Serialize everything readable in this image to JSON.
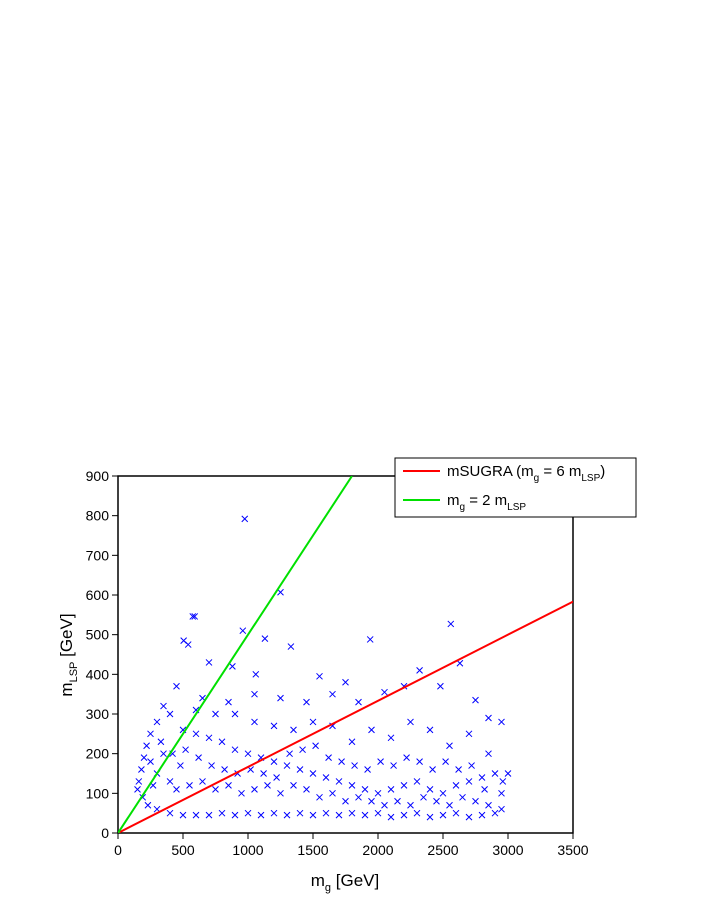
{
  "chart_data": {
    "type": "scatter",
    "xlabel": [
      "m",
      "g",
      " [GeV]"
    ],
    "ylabel": [
      "m",
      "LSP",
      " [GeV]"
    ],
    "xlim": [
      0,
      3500
    ],
    "xticks": [
      0,
      500,
      1000,
      1500,
      2000,
      2500,
      3000,
      3500
    ],
    "ylim": [
      0,
      900
    ],
    "yticks": [
      0,
      100,
      200,
      300,
      400,
      500,
      600,
      700,
      800,
      900
    ],
    "legend": "upper right",
    "series": [
      {
        "type": "scatter",
        "marker": "x",
        "color": "#0000ff",
        "x": [
          975,
          1250,
          575,
          590,
          960,
          2560,
          1940,
          2630,
          505,
          540,
          1130,
          1330,
          700,
          880,
          1060,
          1550,
          1750,
          2320,
          2480,
          2750,
          2850,
          2950,
          2200,
          2050,
          1850,
          1650,
          1450,
          1250,
          1050,
          850,
          650,
          450,
          350,
          300,
          250,
          220,
          200,
          180,
          160,
          150,
          190,
          230,
          300,
          400,
          500,
          600,
          700,
          800,
          900,
          1000,
          1100,
          1200,
          1300,
          1400,
          1500,
          1600,
          1700,
          1800,
          1900,
          2000,
          2100,
          2200,
          2300,
          2400,
          2500,
          2600,
          2700,
          2800,
          2900,
          2950,
          400,
          500,
          600,
          700,
          800,
          900,
          1000,
          1100,
          1200,
          1300,
          1400,
          1500,
          1600,
          1700,
          1800,
          1900,
          2000,
          2100,
          2200,
          2300,
          2400,
          2500,
          2600,
          2700,
          2800,
          2900,
          3000,
          2950,
          2850,
          2700,
          2550,
          2400,
          2250,
          2100,
          1950,
          1800,
          1650,
          1500,
          1350,
          1200,
          1050,
          900,
          750,
          600,
          350,
          300,
          270,
          400,
          450,
          550,
          650,
          750,
          850,
          950,
          1050,
          1150,
          1250,
          1350,
          1450,
          1550,
          1650,
          1750,
          1850,
          1950,
          2050,
          2150,
          2250,
          2350,
          2450,
          2550,
          2650,
          2750,
          2850,
          250,
          330,
          420,
          480,
          520,
          620,
          720,
          820,
          920,
          1020,
          1120,
          1220,
          1320,
          1420,
          1520,
          1620,
          1720,
          1820,
          1920,
          2020,
          2120,
          2220,
          2320,
          2420,
          2520,
          2620,
          2720,
          2820,
          2960
        ],
        "values": [
          792,
          607,
          546,
          546,
          510,
          527,
          488,
          428,
          485,
          475,
          490,
          470,
          430,
          420,
          400,
          395,
          380,
          410,
          370,
          335,
          290,
          280,
          370,
          355,
          330,
          350,
          330,
          340,
          350,
          330,
          340,
          370,
          320,
          280,
          250,
          220,
          190,
          160,
          130,
          110,
          90,
          70,
          60,
          50,
          45,
          45,
          45,
          50,
          45,
          50,
          45,
          50,
          45,
          50,
          45,
          50,
          45,
          50,
          45,
          50,
          40,
          45,
          50,
          40,
          45,
          50,
          40,
          45,
          50,
          60,
          300,
          260,
          250,
          240,
          230,
          210,
          200,
          190,
          180,
          170,
          160,
          150,
          140,
          130,
          120,
          110,
          100,
          110,
          120,
          130,
          110,
          100,
          120,
          130,
          140,
          150,
          150,
          100,
          200,
          250,
          220,
          260,
          280,
          240,
          260,
          230,
          270,
          280,
          260,
          270,
          280,
          300,
          300,
          310,
          200,
          150,
          120,
          130,
          110,
          120,
          130,
          110,
          120,
          100,
          110,
          120,
          100,
          120,
          110,
          90,
          100,
          80,
          90,
          80,
          70,
          80,
          70,
          90,
          80,
          70,
          90,
          80,
          70,
          180,
          230,
          200,
          170,
          210,
          190,
          170,
          160,
          150,
          160,
          150,
          140,
          200,
          210,
          220,
          190,
          180,
          170,
          160,
          180,
          170,
          190,
          180,
          160,
          180,
          160,
          170,
          110,
          130
        ]
      },
      {
        "type": "line",
        "name": [
          "mSUGRA (m",
          "g",
          " = 6 m",
          "LSP",
          ")"
        ],
        "color": "#ff0000",
        "x": [
          0,
          3500
        ],
        "values": [
          0,
          583.3
        ]
      },
      {
        "type": "line",
        "name": [
          "m",
          "g",
          " = 2 m",
          "LSP"
        ],
        "color": "#00e000",
        "x": [
          0,
          1800
        ],
        "values": [
          0,
          900
        ]
      }
    ]
  }
}
